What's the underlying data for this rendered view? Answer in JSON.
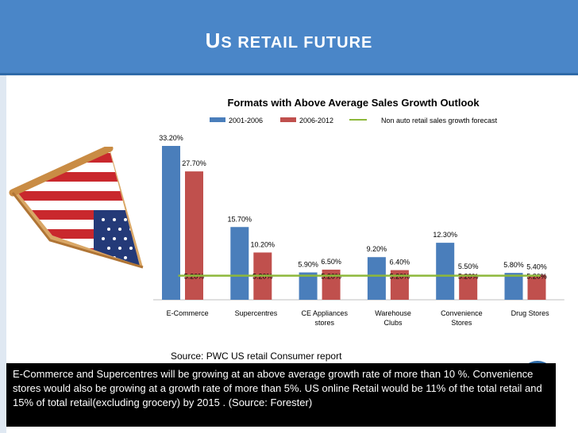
{
  "slide": {
    "title_first": "U",
    "title_rest": "S RETAIL FUTURE",
    "source": "Source: PWC US retail Consumer report",
    "caption": "E-Commerce and Supercentres will be growing at an above average growth rate of more than 10 %. Convenience stores would also be growing at a growth rate of more than 5%. US online Retail would  be 11% of the total retail and 15% of total retail(excluding grocery) by 2015 . (Source: Forester)"
  },
  "colors": {
    "series1": "#4a7ebb",
    "series2": "#c0504d",
    "line": "#8db83a",
    "header": "#4a86c8"
  },
  "chart_data": {
    "type": "bar",
    "title": "Formats with Above Average Sales Growth Outlook",
    "categories": [
      "E-Commerce",
      "Supercentres",
      "CE Appliances stores",
      "Warehouse Clubs",
      "Convenience Stores",
      "Drug Stores"
    ],
    "series": [
      {
        "name": "2001-2006",
        "values": [
          33.2,
          15.7,
          5.9,
          9.2,
          12.3,
          5.8
        ],
        "labels": [
          "33.20%",
          "15.70%",
          "5.90%",
          "9.20%",
          "12.30%",
          "5.80%"
        ]
      },
      {
        "name": "2006-2012",
        "values": [
          27.7,
          10.2,
          6.5,
          6.4,
          5.5,
          5.4
        ],
        "labels": [
          "27.70%",
          "10.20%",
          "6.50%",
          "6.40%",
          "5.50%",
          "5.40%"
        ]
      }
    ],
    "line_series": {
      "name": "Non auto retail sales growth forecast",
      "values": [
        5.2,
        5.2,
        5.2,
        5.2,
        5.2,
        5.2
      ],
      "labels": [
        "5.20%",
        "5.20%",
        "5.20%",
        "5.20%",
        "5.20%",
        "5.20%"
      ]
    },
    "ylim": [
      0,
      35
    ],
    "xlabel": "",
    "ylabel": "",
    "grid": false,
    "legend": "top"
  }
}
